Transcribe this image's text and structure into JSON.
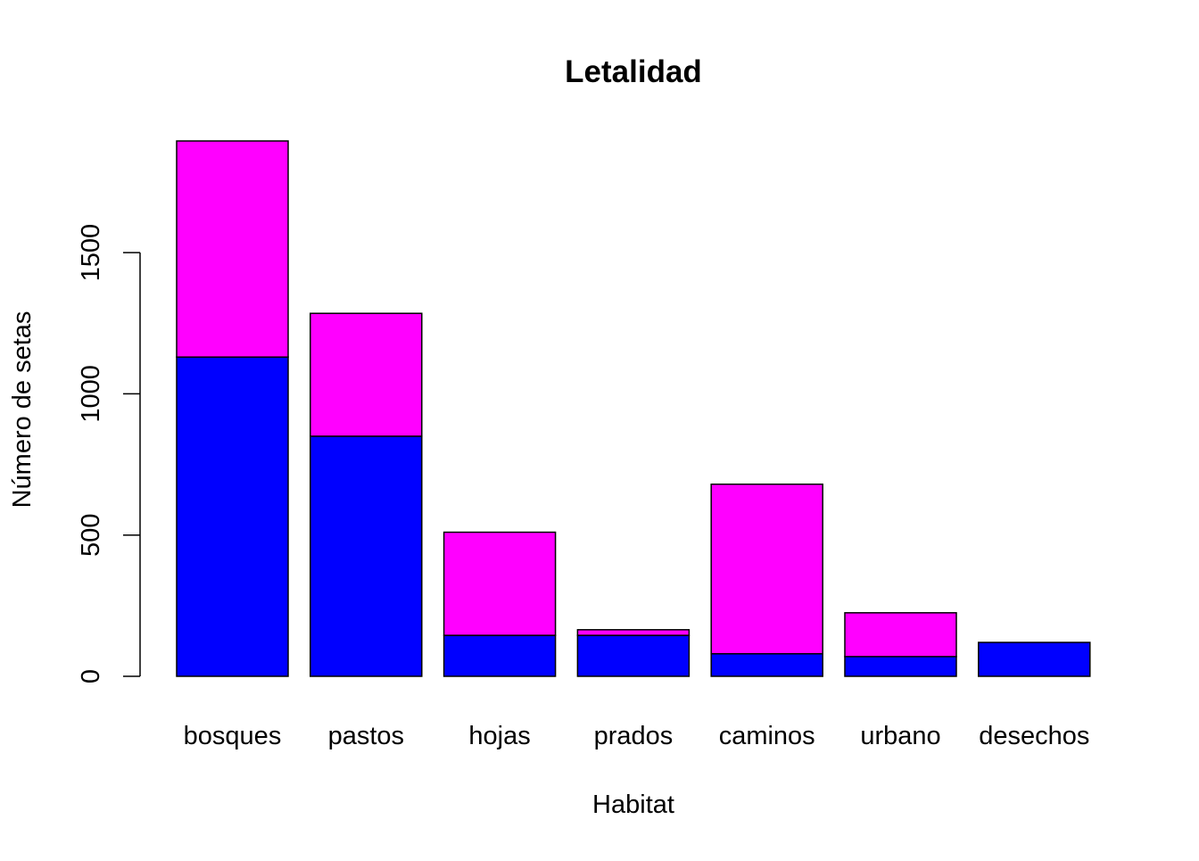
{
  "chart_data": {
    "type": "bar",
    "stacked": true,
    "title": "Letalidad",
    "xlabel": "Habitat",
    "ylabel": "Número de setas",
    "categories": [
      "bosques",
      "pastos",
      "hojas",
      "prados",
      "caminos",
      "urbano",
      "desechos"
    ],
    "series": [
      {
        "values": [
          1130,
          850,
          145,
          145,
          80,
          70,
          120
        ],
        "color": "#0000FF"
      },
      {
        "values": [
          765,
          435,
          365,
          20,
          600,
          155,
          0
        ],
        "color": "#FF00FF"
      }
    ],
    "yticks": [
      0,
      500,
      1000,
      1500
    ],
    "ylim": [
      0,
      1900
    ],
    "grid": false,
    "legend": "none"
  }
}
